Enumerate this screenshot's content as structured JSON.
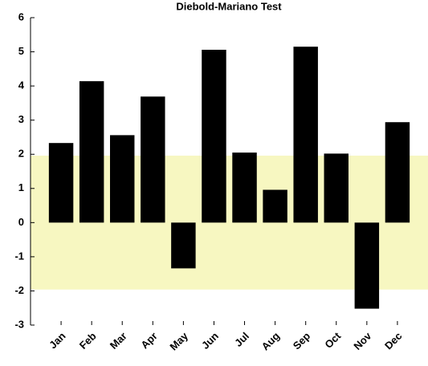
{
  "chart_data": {
    "type": "bar",
    "title": "Diebold-Mariano Test",
    "categories": [
      "Jan",
      "Feb",
      "Mar",
      "Apr",
      "May",
      "Jun",
      "Jul",
      "Aug",
      "Sep",
      "Oct",
      "Nov",
      "Dec"
    ],
    "values": [
      2.33,
      4.14,
      2.56,
      3.69,
      -1.34,
      5.06,
      2.05,
      0.96,
      5.15,
      2.02,
      -2.52,
      2.94
    ],
    "color": "#000000",
    "band": [
      -1.96,
      1.96
    ],
    "band_color": "#f7f7c1",
    "ylim": [
      -3,
      6
    ],
    "yticks": [
      -3,
      -2,
      -1,
      0,
      1,
      2,
      3,
      4,
      5,
      6
    ]
  }
}
